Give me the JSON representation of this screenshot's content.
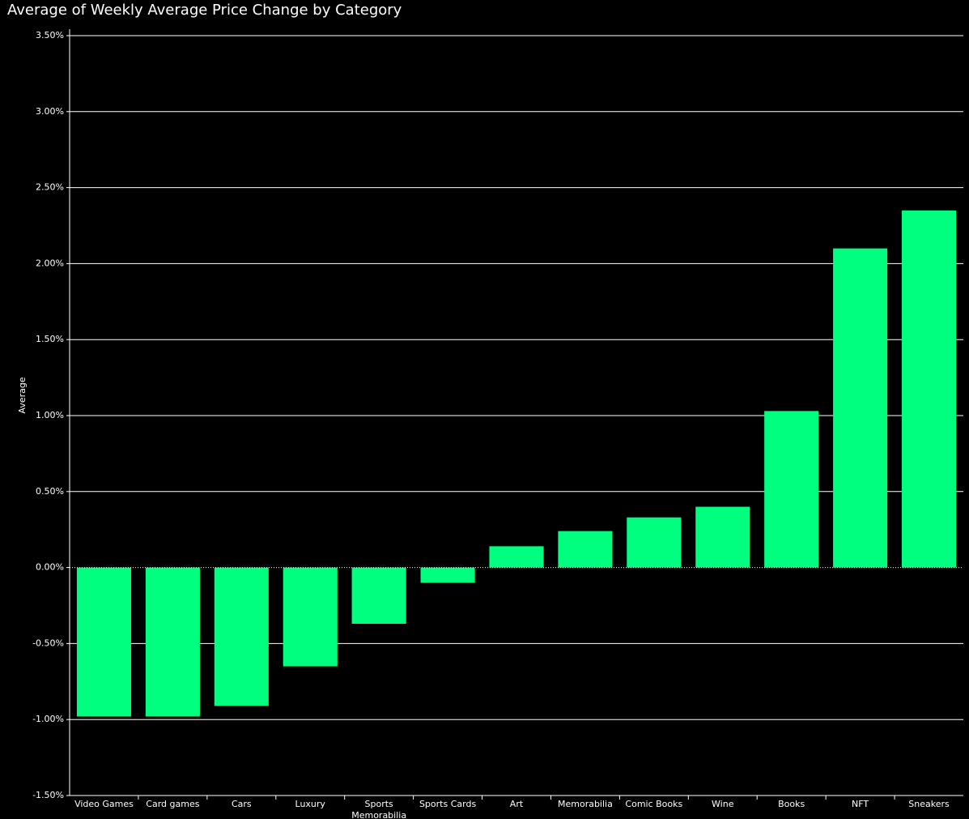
{
  "chart_data": {
    "type": "bar",
    "title": "Average of Weekly Average Price Change by Category",
    "y_label": "Average",
    "categories": [
      "Video Games",
      "Card games",
      "Cars",
      "Luxury",
      "Sports Memorabilia",
      "Sports Cards",
      "Art",
      "Memorabilia",
      "Comic Books",
      "Wine",
      "Books",
      "NFT",
      "Sneakers"
    ],
    "values": [
      -0.98,
      -0.98,
      -0.91,
      -0.65,
      -0.37,
      -0.1,
      0.14,
      0.24,
      0.33,
      0.4,
      1.03,
      2.1,
      2.35
    ],
    "color": "#00ff7f",
    "ylim": [
      -1.5,
      3.5
    ],
    "yticks": [
      {
        "value": -1.5,
        "label": "-1.50%"
      },
      {
        "value": -1.0,
        "label": "-1.00%"
      },
      {
        "value": -0.5,
        "label": "-0.50%"
      },
      {
        "value": 0,
        "label": "0.00%"
      },
      {
        "value": 0.5,
        "label": "0.50%"
      },
      {
        "value": 1.0,
        "label": "1.00%"
      },
      {
        "value": 1.5,
        "label": "1.50%"
      },
      {
        "value": 2.0,
        "label": "2.00%"
      },
      {
        "value": 2.5,
        "label": "2.50%"
      },
      {
        "value": 3.0,
        "label": "3.00%"
      },
      {
        "value": 3.5,
        "label": "3.50%"
      }
    ],
    "grid": true
  }
}
